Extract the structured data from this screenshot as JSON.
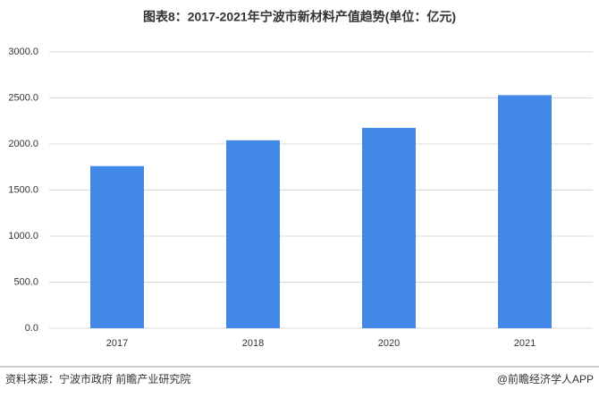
{
  "chart_data": {
    "type": "bar",
    "title": "图表8：2017-2021年宁波市新材料产值趋势(单位：亿元)",
    "categories": [
      "2017",
      "2018",
      "2020",
      "2021"
    ],
    "values": [
      1760,
      2040,
      2175,
      2530
    ],
    "color": "#4288e6",
    "ylim": [
      0,
      3000
    ],
    "yticks": [
      {
        "value": 0,
        "label": "0.0"
      },
      {
        "value": 500,
        "label": "500.0"
      },
      {
        "value": 1000,
        "label": "1000.0"
      },
      {
        "value": 1500,
        "label": "1500.0"
      },
      {
        "value": 2000,
        "label": "2000.0"
      },
      {
        "value": 2500,
        "label": "2500.0"
      },
      {
        "value": 3000,
        "label": "3000.0"
      }
    ],
    "grid": true,
    "source": "资料来源：宁波市政府 前瞻产业研究院",
    "credit": "@前瞻经济学人APP"
  }
}
